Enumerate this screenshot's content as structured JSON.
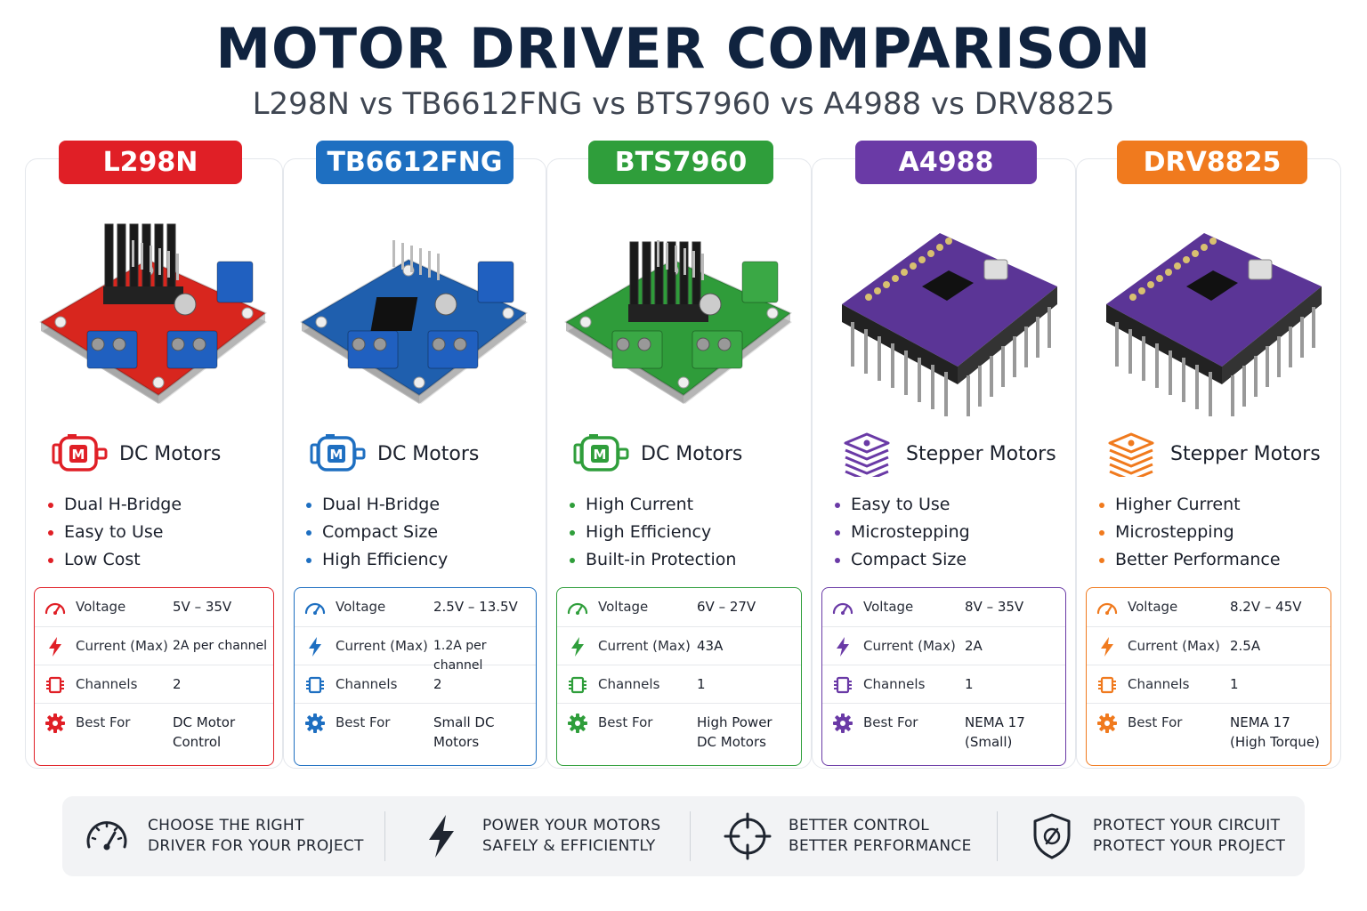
{
  "header": {
    "title": "MOTOR DRIVER COMPARISON",
    "subtitle": "L298N vs TB6612FNG vs BTS7960 vs A4988 vs DRV8825"
  },
  "drivers": [
    {
      "name": "L298N",
      "color": "#e01f26",
      "board_color": "#d8261e",
      "motor_type": "DC Motors",
      "motor_icon": "dc-motor-icon",
      "features": [
        "Dual H-Bridge",
        "Easy to Use",
        "Low Cost"
      ],
      "specs": [
        {
          "label": "Voltage",
          "value": "5V – 35V",
          "icon": "gauge-icon"
        },
        {
          "label": "Current (Max)",
          "value": "2A per channel",
          "icon": "lightning-icon"
        },
        {
          "label": "Channels",
          "value": "2",
          "icon": "chip-icon"
        },
        {
          "label": "Best For",
          "value": "DC Motor",
          "value2": "Control",
          "icon": "gear-icon"
        }
      ]
    },
    {
      "name": "TB6612FNG",
      "color": "#1e6fc1",
      "board_color": "#1f5fae",
      "motor_type": "DC Motors",
      "motor_icon": "dc-motor-icon",
      "features": [
        "Dual H-Bridge",
        "Compact Size",
        "High Efficiency"
      ],
      "specs": [
        {
          "label": "Voltage",
          "value": "2.5V – 13.5V",
          "icon": "gauge-icon"
        },
        {
          "label": "Current (Max)",
          "value": "1.2A per channel",
          "icon": "lightning-icon"
        },
        {
          "label": "Channels",
          "value": "2",
          "icon": "chip-icon"
        },
        {
          "label": "Best For",
          "value": "Small DC",
          "value2": "Motors",
          "icon": "gear-icon"
        }
      ]
    },
    {
      "name": "BTS7960",
      "color": "#2f9e3b",
      "board_color": "#2f9c3a",
      "motor_type": "DC Motors",
      "motor_icon": "dc-motor-icon",
      "features": [
        "High Current",
        "High Efficiency",
        "Built-in Protection"
      ],
      "specs": [
        {
          "label": "Voltage",
          "value": "6V – 27V",
          "icon": "gauge-icon"
        },
        {
          "label": "Current (Max)",
          "value": "43A",
          "icon": "lightning-icon"
        },
        {
          "label": "Channels",
          "value": "1",
          "icon": "chip-icon"
        },
        {
          "label": "Best For",
          "value": "High Power",
          "value2": "DC Motors",
          "icon": "gear-icon"
        }
      ]
    },
    {
      "name": "A4988",
      "color": "#6a3aa6",
      "board_color": "#5b3596",
      "motor_type": "Stepper Motors",
      "motor_icon": "stepper-motor-icon",
      "features": [
        "Easy to Use",
        "Microstepping",
        "Compact Size"
      ],
      "specs": [
        {
          "label": "Voltage",
          "value": "8V – 35V",
          "icon": "gauge-icon"
        },
        {
          "label": "Current (Max)",
          "value": "2A",
          "icon": "lightning-icon"
        },
        {
          "label": "Channels",
          "value": "1",
          "icon": "chip-icon"
        },
        {
          "label": "Best For",
          "value": "NEMA 17",
          "value2": "(Small)",
          "icon": "gear-icon"
        }
      ]
    },
    {
      "name": "DRV8825",
      "color": "#f07a1e",
      "board_color": "#5b3596",
      "motor_type": "Stepper Motors",
      "motor_icon": "stepper-motor-icon",
      "features": [
        "Higher Current",
        "Microstepping",
        "Better Performance"
      ],
      "specs": [
        {
          "label": "Voltage",
          "value": "8.2V – 45V",
          "icon": "gauge-icon"
        },
        {
          "label": "Current (Max)",
          "value": "2.5A",
          "icon": "lightning-icon"
        },
        {
          "label": "Channels",
          "value": "1",
          "icon": "chip-icon"
        },
        {
          "label": "Best For",
          "value": "NEMA 17",
          "value2": "(High Torque)",
          "icon": "gear-icon"
        }
      ]
    }
  ],
  "footer": [
    {
      "line1": "CHOOSE THE RIGHT",
      "line2": "DRIVER FOR YOUR PROJECT",
      "icon": "speedometer-icon"
    },
    {
      "line1": "POWER YOUR MOTORS",
      "line2": "SAFELY & EFFICIENTLY",
      "icon": "lightning-icon"
    },
    {
      "line1": "BETTER CONTROL",
      "line2": "BETTER PERFORMANCE",
      "icon": "crosshair-icon"
    },
    {
      "line1": "PROTECT YOUR CIRCUIT",
      "line2": "PROTECT YOUR PROJECT",
      "icon": "shield-icon"
    }
  ]
}
